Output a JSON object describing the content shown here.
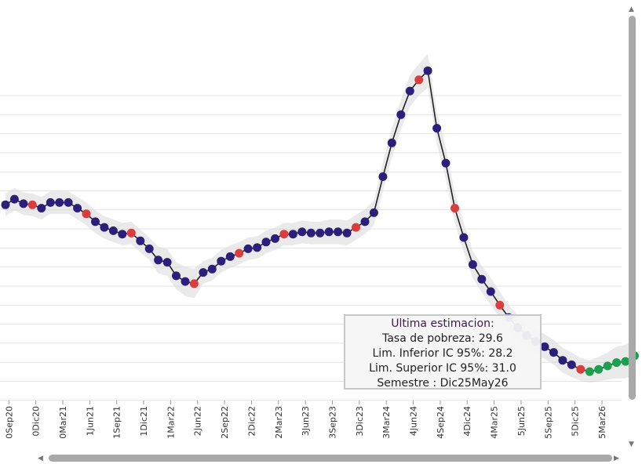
{
  "chart_data": {
    "type": "line",
    "title": "",
    "xlabel": "",
    "ylabel": "",
    "x_tick_labels": [
      "0Sep20",
      "0Dic20",
      "0Mar21",
      "1Jun21",
      "1Sep21",
      "1Dic21",
      "1Mar22",
      "2Jun22",
      "2Sep22",
      "2Dic22",
      "2Mar23",
      "3Jun23",
      "3Sep23",
      "3Dic23",
      "3Mar24",
      "4Jun24",
      "4Sep24",
      "4Dic24",
      "4Mar25",
      "5Jun25",
      "5Sep25",
      "5Dic25",
      "5Mar26"
    ],
    "ylim": [
      18,
      50
    ],
    "grid": true,
    "series": [
      {
        "values": [
          35.3,
          35.8,
          35.4,
          35.3,
          35.0,
          35.5,
          35.5,
          35.5,
          35.0,
          34.5,
          33.8,
          33.3,
          33.0,
          32.7,
          32.8,
          32.1,
          31.4,
          30.4,
          30.2,
          29.0,
          28.5,
          28.3,
          29.3,
          29.6,
          30.3,
          30.7,
          31.0,
          31.4,
          31.5,
          32.0,
          32.3,
          32.7,
          32.7,
          32.9,
          32.8,
          32.8,
          32.9,
          32.9,
          32.8,
          33.3,
          33.8,
          34.6,
          37.8,
          40.8,
          43.3,
          45.4,
          46.4,
          47.2,
          42.1,
          39.0,
          35.0,
          32.4,
          30.0,
          28.7,
          27.6,
          26.4,
          25.3,
          24.4,
          23.7,
          23.2,
          22.7,
          22.2,
          21.5,
          21.1,
          20.7,
          20.5,
          20.7,
          21.0,
          21.3,
          21.4,
          21.9
        ],
        "lower": [
          34.3,
          34.8,
          34.4,
          34.3,
          34.0,
          34.5,
          34.5,
          34.5,
          34.0,
          33.5,
          32.8,
          32.3,
          32.0,
          31.7,
          31.8,
          31.1,
          30.4,
          29.2,
          29.0,
          27.8,
          27.2,
          27.0,
          28.3,
          28.6,
          29.3,
          29.7,
          30.0,
          30.4,
          30.5,
          31.0,
          31.3,
          31.7,
          31.7,
          31.9,
          31.8,
          31.8,
          31.8,
          31.8,
          31.7,
          32.2,
          32.7,
          33.5,
          36.5,
          39.5,
          42.0,
          44.0,
          45.0,
          45.7,
          40.7,
          37.6,
          33.7,
          31.1,
          28.8,
          27.5,
          26.4,
          25.2,
          24.2,
          23.3,
          22.6,
          22.1,
          21.6,
          21.1,
          20.4,
          20.0,
          19.7,
          19.5,
          19.6,
          19.8,
          19.9,
          19.9,
          20.3
        ],
        "upper": [
          36.3,
          36.8,
          36.4,
          36.3,
          36.0,
          36.5,
          36.5,
          36.5,
          36.0,
          35.5,
          34.8,
          34.3,
          34.0,
          33.7,
          33.8,
          33.1,
          32.4,
          31.6,
          31.4,
          30.2,
          29.8,
          29.6,
          30.3,
          30.6,
          31.3,
          31.7,
          32.0,
          32.4,
          32.5,
          33.0,
          33.3,
          33.7,
          33.7,
          33.9,
          33.8,
          33.8,
          34.0,
          34.0,
          33.9,
          34.4,
          34.9,
          35.7,
          39.1,
          42.1,
          44.6,
          46.8,
          47.8,
          48.7,
          43.5,
          40.4,
          36.3,
          33.7,
          31.2,
          29.9,
          28.8,
          27.6,
          26.4,
          25.5,
          24.8,
          24.3,
          23.8,
          23.3,
          22.6,
          22.2,
          21.7,
          21.5,
          21.8,
          22.2,
          22.7,
          22.9,
          23.5
        ],
        "point_colors": [
          "navy",
          "navy",
          "navy",
          "red",
          "navy",
          "navy",
          "navy",
          "navy",
          "navy",
          "red",
          "navy",
          "navy",
          "navy",
          "navy",
          "red",
          "navy",
          "navy",
          "navy",
          "navy",
          "navy",
          "navy",
          "red",
          "navy",
          "navy",
          "navy",
          "navy",
          "red",
          "navy",
          "navy",
          "navy",
          "navy",
          "red",
          "navy",
          "navy",
          "navy",
          "navy",
          "navy",
          "navy",
          "navy",
          "red",
          "navy",
          "navy",
          "navy",
          "navy",
          "navy",
          "navy",
          "red",
          "navy",
          "navy",
          "navy",
          "red",
          "navy",
          "navy",
          "navy",
          "navy",
          "red",
          "navy",
          "navy",
          "navy",
          "navy",
          "navy",
          "navy",
          "navy",
          "navy",
          "red",
          "green",
          "green",
          "green",
          "green",
          "green",
          "green"
        ]
      }
    ],
    "colors": {
      "navy": "#2b1f7a",
      "red": "#d93d3d",
      "green": "#1e9e4f",
      "line": "#222222"
    }
  },
  "tooltip": {
    "title": "Ultima estimacion:",
    "line1": "Tasa de pobreza:  29.6",
    "line2": "Lim. Inferior IC 95%:  28.2",
    "line3": "Lim. Superior IC 95%:  31.0",
    "line4": "Semestre : Dic25May26"
  },
  "scrollbars": {
    "up_arrow": "▲",
    "down_arrow": "▼",
    "left_arrow": "◀",
    "right_arrow": "▶"
  }
}
